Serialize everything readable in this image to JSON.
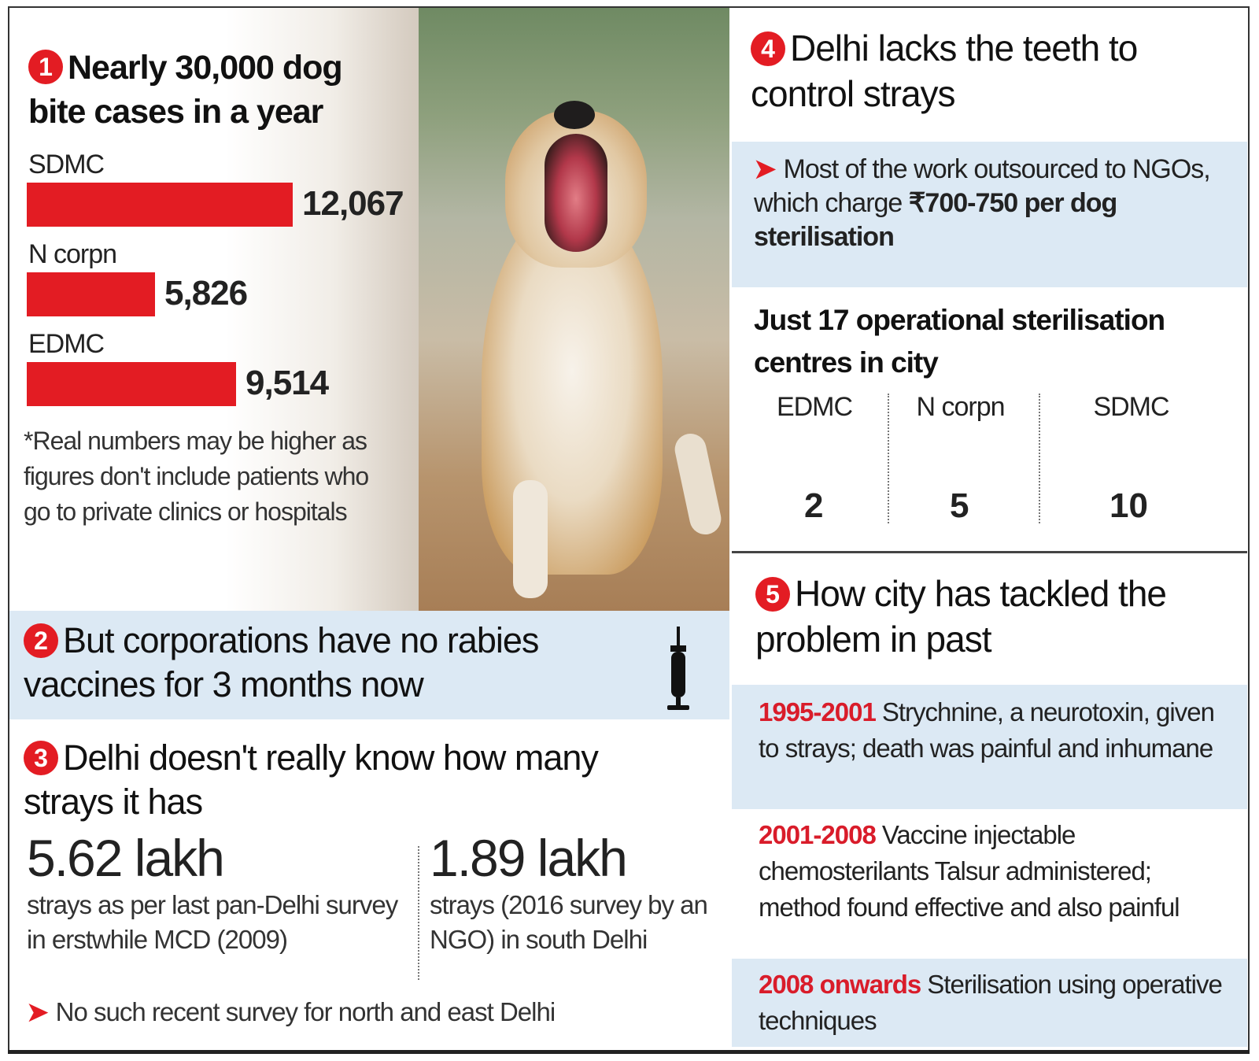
{
  "chart_data": [
    {
      "type": "bar",
      "title": "Nearly 30,000 dog bite cases in a year",
      "section_number": "1",
      "categories": [
        "SDMC",
        "N corpn",
        "EDMC"
      ],
      "values": [
        12067,
        5826,
        9514
      ],
      "value_labels": [
        "12,067",
        "5,826",
        "9,514"
      ],
      "xlim": [
        0,
        12067
      ],
      "colors": {
        "bar": "#e31c23"
      },
      "note": "*Real numbers may be higher as figures don't include patients who go to private clinics or hospitals"
    },
    {
      "type": "bar",
      "title": "Just 17 operational sterilisation centres in city",
      "categories": [
        "EDMC",
        "N corpn",
        "SDMC"
      ],
      "values": [
        2,
        5,
        10
      ],
      "value_labels": [
        "2",
        "5",
        "10"
      ],
      "colors": {
        "dot": "#e31c23"
      }
    }
  ],
  "section2": {
    "number": "2",
    "title": "But corporations have no rabies vaccines for 3 months now",
    "icon": "syringe-icon"
  },
  "section3": {
    "number": "3",
    "title": "Delhi doesn't really know how many strays it has",
    "left_figure": "5.62 lakh",
    "left_desc": "strays as per last pan-Delhi survey in erstwhile MCD (2009)",
    "right_figure": "1.89 lakh",
    "right_desc": "strays (2016 survey by an NGO) in south Delhi",
    "bullet": "No such recent survey for north and east Delhi"
  },
  "section4": {
    "number": "4",
    "title": "Delhi lacks the teeth to control strays",
    "bullet_plain": "Most of the work outsourced to NGOs, which charge",
    "bullet_bold": "₹700-750 per dog sterilisation"
  },
  "section5": {
    "number": "5",
    "title": "How city has tackled the problem in past",
    "timeline": [
      {
        "years": "1995-2001",
        "text": "Strychnine, a neurotoxin, given to strays; death was painful and inhumane"
      },
      {
        "years": "2001-2008",
        "text": "Vaccine injectable chemosterilants Talsur administered; method found effective and also painful"
      },
      {
        "years": "2008 onwards",
        "text": "Sterilisation using operative techniques"
      }
    ]
  },
  "colors": {
    "accent": "#e31c23",
    "panel_blue": "#dce9f4"
  }
}
